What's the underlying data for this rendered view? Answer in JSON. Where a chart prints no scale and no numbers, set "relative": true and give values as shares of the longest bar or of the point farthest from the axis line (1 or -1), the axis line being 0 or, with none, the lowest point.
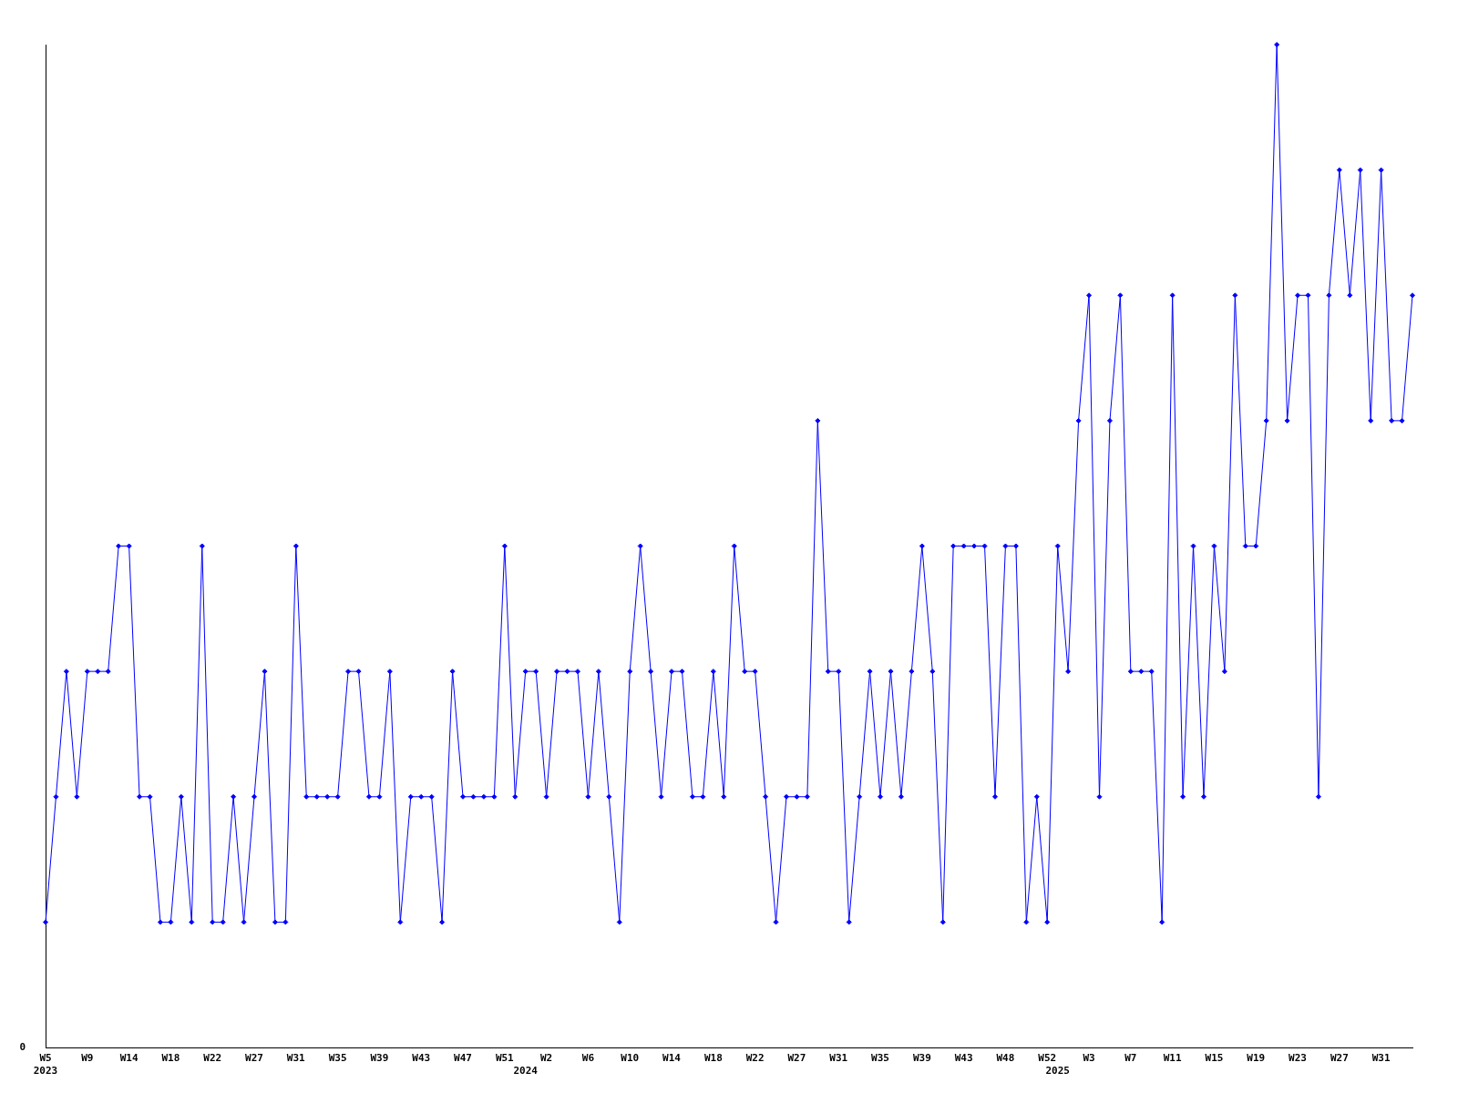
{
  "chart_data": {
    "type": "line",
    "relative": true,
    "annotations": [
      "0"
    ],
    "grid": false,
    "legend": false,
    "marker": "diamond",
    "line_style": "solid",
    "categories": [
      "W5\n2023",
      null,
      null,
      null,
      "W9",
      null,
      null,
      null,
      "W14",
      null,
      null,
      null,
      "W18",
      null,
      null,
      null,
      "W22",
      null,
      null,
      null,
      "W27",
      null,
      null,
      null,
      "W31",
      null,
      null,
      null,
      "W35",
      null,
      null,
      null,
      "W39",
      null,
      null,
      null,
      "W43",
      null,
      null,
      null,
      "W47",
      null,
      null,
      null,
      "W51",
      null,
      "\n2024",
      null,
      "W2",
      null,
      null,
      null,
      "W6",
      null,
      null,
      null,
      "W10",
      null,
      null,
      null,
      "W14",
      null,
      null,
      null,
      "W18",
      null,
      null,
      null,
      "W22",
      null,
      null,
      null,
      "W27",
      null,
      null,
      null,
      "W31",
      null,
      null,
      null,
      "W35",
      null,
      null,
      null,
      "W39",
      null,
      null,
      null,
      "W43",
      null,
      null,
      null,
      "W48",
      null,
      null,
      null,
      "W52",
      "\n2025",
      null,
      null,
      "W3",
      null,
      null,
      null,
      "W7",
      null,
      null,
      null,
      "W11",
      null,
      null,
      null,
      "W15",
      null,
      null,
      null,
      "W19",
      null,
      null,
      null,
      "W23",
      null,
      null,
      null,
      "W27",
      null,
      null,
      null,
      "W31",
      null,
      null,
      null
    ],
    "series": [
      {
        "color": "#0000ff",
        "values": [
          0.125,
          0.25,
          0.375,
          0.25,
          0.375,
          0.375,
          0.375,
          0.5,
          0.5,
          0.25,
          0.25,
          0.125,
          0.125,
          0.25,
          0.125,
          0.5,
          0.125,
          0.125,
          0.25,
          0.125,
          0.25,
          0.375,
          0.125,
          0.125,
          0.5,
          0.25,
          0.25,
          0.25,
          0.25,
          0.375,
          0.375,
          0.25,
          0.25,
          0.375,
          0.125,
          0.25,
          0.25,
          0.25,
          0.125,
          0.375,
          0.25,
          0.25,
          0.25,
          0.25,
          0.5,
          0.25,
          0.375,
          0.375,
          0.25,
          0.375,
          0.375,
          0.375,
          0.25,
          0.375,
          0.25,
          0.125,
          0.375,
          0.5,
          0.375,
          0.25,
          0.375,
          0.375,
          0.25,
          0.25,
          0.375,
          0.25,
          0.5,
          0.375,
          0.375,
          0.25,
          0.125,
          0.25,
          0.25,
          0.25,
          0.625,
          0.375,
          0.375,
          0.125,
          0.25,
          0.375,
          0.25,
          0.375,
          0.25,
          0.375,
          0.5,
          0.375,
          0.125,
          0.5,
          0.5,
          0.5,
          0.5,
          0.25,
          0.5,
          0.5,
          0.125,
          0.25,
          0.125,
          0.5,
          0.375,
          0.625,
          0.75,
          0.25,
          0.625,
          0.75,
          0.375,
          0.375,
          0.375,
          0.125,
          0.75,
          0.25,
          0.5,
          0.25,
          0.5,
          0.375,
          0.75,
          0.5,
          0.5,
          0.625,
          1,
          0.625,
          0.75,
          0.75,
          0.25,
          0.75,
          0.875,
          0.75,
          0.875,
          0.625,
          0.875,
          0.625,
          0.625,
          0.75
        ]
      }
    ]
  }
}
